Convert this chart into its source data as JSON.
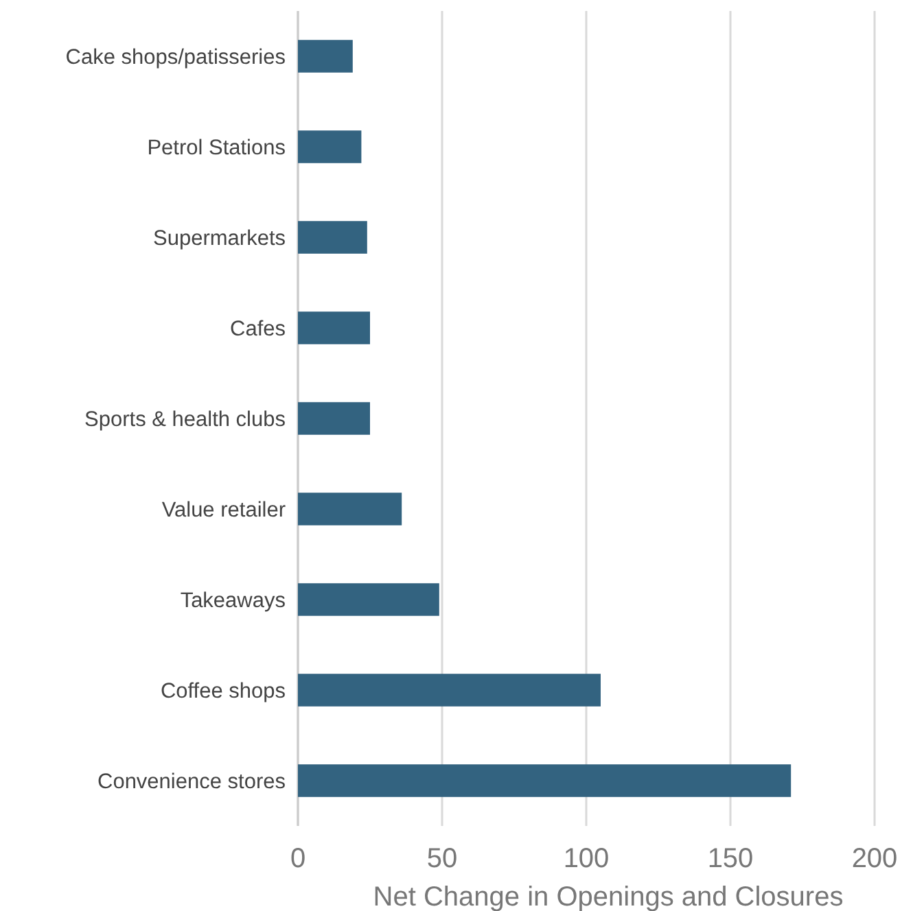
{
  "chart_data": {
    "type": "bar",
    "orientation": "horizontal",
    "xlabel": "Net Change in Openings and Closures",
    "categories": [
      "Cake shops/patisseries",
      "Petrol Stations",
      "Supermarkets",
      "Cafes",
      "Sports & health clubs",
      "Value retailer",
      "Takeaways",
      "Coffee shops",
      "Convenience stores"
    ],
    "values": [
      19,
      22,
      24,
      25,
      25,
      36,
      49,
      105,
      171
    ],
    "color": "#336380",
    "xlim": [
      0,
      200
    ],
    "xticks": [
      0,
      50,
      100,
      150,
      200
    ],
    "grid": "x"
  }
}
